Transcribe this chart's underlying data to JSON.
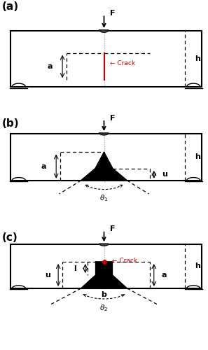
{
  "fig_width": 2.97,
  "fig_height": 5.0,
  "dpi": 100,
  "bg_color": "#ffffff",
  "crack_color": "#cc0000",
  "label_fontsize": 8,
  "panel_label_fontsize": 11,
  "panels": [
    "(a)",
    "(b)",
    "(c)"
  ]
}
